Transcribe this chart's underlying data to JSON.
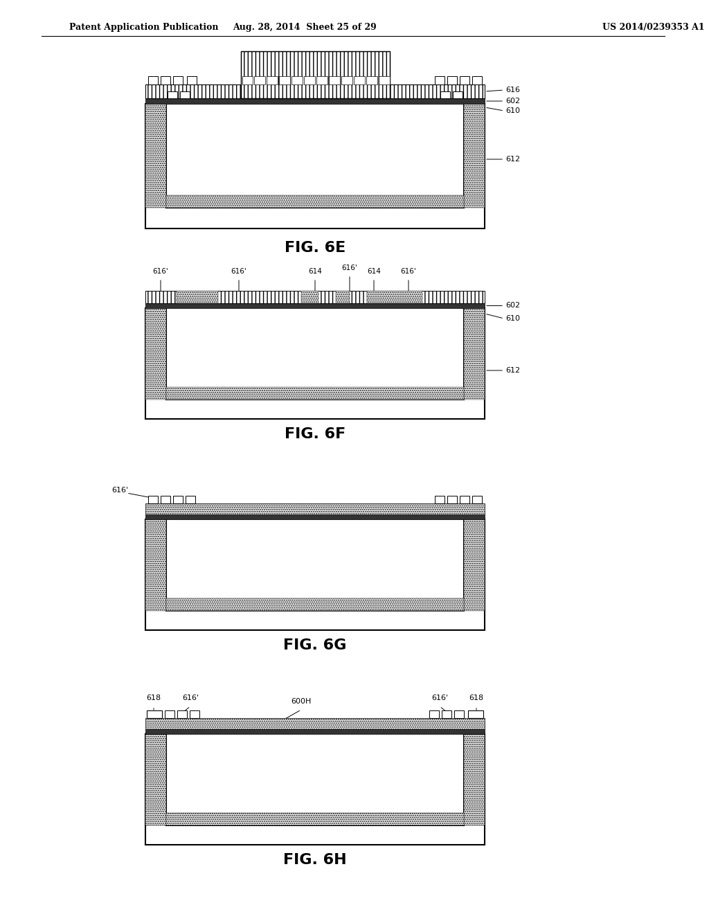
{
  "bg_color": "#ffffff",
  "header_left": "Patent Application Publication",
  "header_center": "Aug. 28, 2014  Sheet 25 of 29",
  "header_right": "US 2014/0239353 A1",
  "page_width": 10.24,
  "page_height": 13.2
}
